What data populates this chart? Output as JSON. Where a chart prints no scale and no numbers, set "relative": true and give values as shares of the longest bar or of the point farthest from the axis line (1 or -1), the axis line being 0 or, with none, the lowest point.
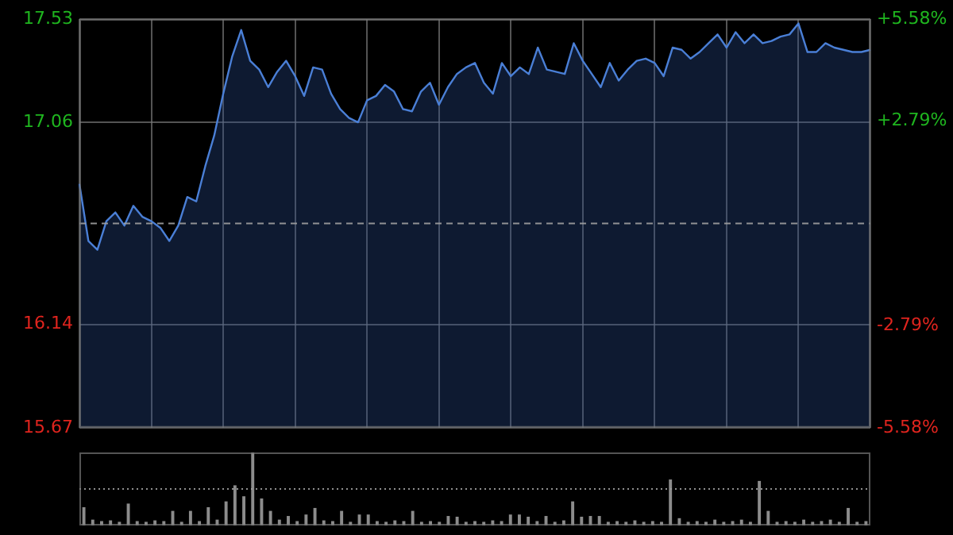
{
  "chart_data": [
    {
      "type": "area",
      "categories": [
        null,
        null,
        null,
        null,
        null,
        null,
        null,
        null,
        null,
        null,
        null,
        null,
        null,
        null,
        null,
        null,
        null,
        null,
        null,
        null,
        null,
        null,
        null,
        null,
        null,
        null,
        null,
        null,
        null,
        null,
        null,
        null,
        null,
        null,
        null,
        null,
        null,
        null,
        null,
        null,
        null,
        null,
        null,
        null,
        null,
        null,
        null,
        null,
        null,
        null,
        null,
        null,
        null,
        null,
        null,
        null,
        null,
        null,
        null,
        null,
        null,
        null,
        null,
        null,
        null,
        null,
        null,
        null,
        null,
        null,
        null,
        null,
        null,
        null,
        null,
        null,
        null,
        null,
        null,
        null,
        null,
        null,
        null,
        null,
        null,
        null,
        null,
        null,
        null
      ],
      "series": [
        {
          "color": "#4a7fd6",
          "values": [
            16.78,
            16.52,
            16.48,
            16.61,
            16.65,
            16.59,
            16.68,
            16.63,
            16.61,
            16.58,
            16.52,
            16.59,
            16.72,
            16.7,
            16.86,
            17.0,
            17.19,
            17.36,
            17.48,
            17.34,
            17.3,
            17.22,
            17.29,
            17.34,
            17.27,
            17.18,
            17.31,
            17.3,
            17.19,
            17.12,
            17.08,
            17.06,
            17.16,
            17.18,
            17.23,
            17.2,
            17.12,
            17.11,
            17.2,
            17.24,
            17.14,
            17.22,
            17.28,
            17.31,
            17.33,
            17.24,
            17.19,
            17.33,
            17.27,
            17.31,
            17.28,
            17.4,
            17.3,
            17.29,
            17.28,
            17.42,
            17.34,
            17.28,
            17.22,
            17.33,
            17.25,
            17.3,
            17.34,
            17.35,
            17.33,
            17.27,
            17.4,
            17.39,
            17.35,
            17.38,
            17.42,
            17.46,
            17.4,
            17.47,
            17.42,
            17.46,
            17.42,
            17.43,
            17.45,
            17.46,
            17.51,
            17.38,
            17.38,
            17.42,
            17.4,
            17.39,
            17.38,
            17.38,
            17.39
          ]
        }
      ],
      "ylim": [
        15.67,
        17.53
      ],
      "yticks": [
        15.67,
        16.14,
        17.06,
        17.53
      ],
      "y2lim": [
        -5.58,
        5.58
      ],
      "y2ticks": [
        {
          "value": -5.58,
          "label": "-5.58%"
        },
        {
          "value": -2.79,
          "label": "-2.79%"
        },
        {
          "value": 2.79,
          "label": "+2.79%"
        },
        {
          "value": 5.58,
          "label": "+5.58%"
        }
      ],
      "ref_lines": [
        {
          "axis": "y",
          "value": 16.6,
          "line_style": "dashed"
        }
      ],
      "grid": true,
      "tick_labels": "y",
      "legend": false
    },
    {
      "type": "bar",
      "relative": true,
      "categories": [
        null,
        null,
        null,
        null,
        null,
        null,
        null,
        null,
        null,
        null,
        null,
        null,
        null,
        null,
        null,
        null,
        null,
        null,
        null,
        null,
        null,
        null,
        null,
        null,
        null,
        null,
        null,
        null,
        null,
        null,
        null,
        null,
        null,
        null,
        null,
        null,
        null,
        null,
        null,
        null,
        null,
        null,
        null,
        null,
        null,
        null,
        null,
        null,
        null,
        null,
        null,
        null,
        null,
        null,
        null,
        null,
        null,
        null,
        null,
        null,
        null,
        null,
        null,
        null,
        null,
        null,
        null,
        null,
        null,
        null,
        null,
        null,
        null,
        null,
        null,
        null,
        null,
        null,
        null,
        null,
        null,
        null,
        null,
        null,
        null,
        null,
        null,
        null,
        null
      ],
      "color": "#8c8c8c",
      "values": [
        0.25,
        0.08,
        0.06,
        0.07,
        0.05,
        0.3,
        0.06,
        0.05,
        0.07,
        0.06,
        0.2,
        0.05,
        0.2,
        0.06,
        0.25,
        0.08,
        0.33,
        0.55,
        0.4,
        1,
        0.37,
        0.2,
        0.08,
        0.13,
        0.06,
        0.15,
        0.24,
        0.07,
        0.06,
        0.2,
        0.05,
        0.15,
        0.15,
        0.06,
        0.05,
        0.07,
        0.06,
        0.2,
        0.05,
        0.06,
        0.05,
        0.13,
        0.12,
        0.05,
        0.06,
        0.05,
        0.07,
        0.06,
        0.15,
        0.15,
        0.12,
        0.06,
        0.13,
        0.05,
        0.07,
        0.33,
        0.12,
        0.13,
        0.13,
        0.05,
        0.06,
        0.05,
        0.07,
        0.05,
        0.06,
        0.05,
        0.63,
        0.1,
        0.05,
        0.06,
        0.05,
        0.08,
        0.05,
        0.06,
        0.08,
        0.05,
        0.61,
        0.2,
        0.05,
        0.06,
        0.05,
        0.08,
        0.05,
        0.06,
        0.08,
        0.05,
        0.24,
        0.05,
        0.06
      ],
      "ref_lines": [
        {
          "axis": "y",
          "value": 0.5,
          "line_style": "dotted"
        }
      ],
      "tick_labels": false,
      "legend": false
    }
  ]
}
